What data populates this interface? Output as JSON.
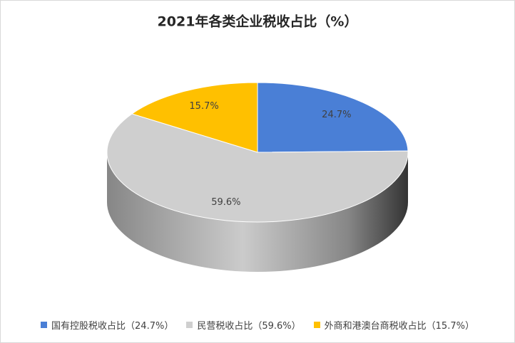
{
  "chart_data": {
    "type": "pie",
    "title": "2021年各类企业税收占比（%）",
    "categories": [
      "国有控股税收占比（24.7%）",
      "民营税收占比（59.6%）",
      "外商和港澳台商税收占比（15.7%）"
    ],
    "values": [
      24.7,
      59.6,
      15.7
    ],
    "value_labels": [
      "24.7%",
      "59.6%",
      "15.7%"
    ],
    "colors": [
      "#4a7fd6",
      "#cfcfcf",
      "#ffc000"
    ],
    "legend": "bottom"
  }
}
